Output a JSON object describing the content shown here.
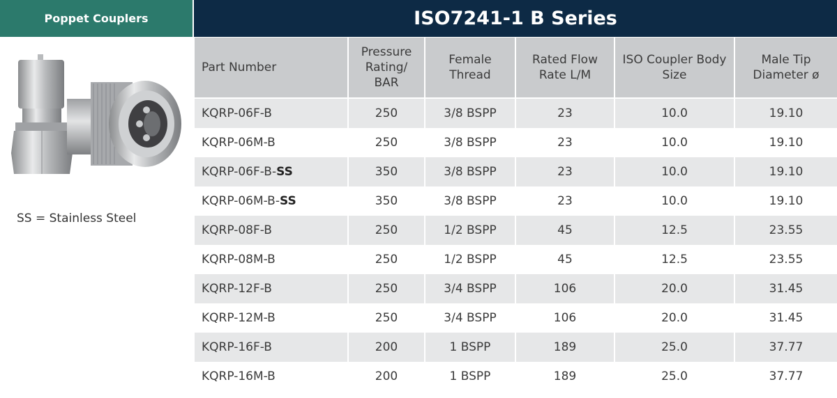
{
  "left": {
    "header": "Poppet Couplers",
    "note": "SS = Stainless Steel"
  },
  "title": "ISO7241-1 B Series",
  "table": {
    "headers": [
      "Part Number",
      "Pressure Rating/ BAR",
      "Female Thread",
      "Rated Flow Rate L/M",
      "ISO Coupler Body Size",
      "Male Tip Diameter ø"
    ],
    "rows": [
      {
        "part": "KQRP-06F-B",
        "suffix": "",
        "pressure": "250",
        "thread": "3/8 BSPP",
        "flow": "23",
        "body": "10.0",
        "tip": "19.10"
      },
      {
        "part": "KQRP-06M-B",
        "suffix": "",
        "pressure": "250",
        "thread": "3/8 BSPP",
        "flow": "23",
        "body": "10.0",
        "tip": "19.10"
      },
      {
        "part": "KQRP-06F-B-",
        "suffix": "SS",
        "pressure": "350",
        "thread": "3/8 BSPP",
        "flow": "23",
        "body": "10.0",
        "tip": "19.10"
      },
      {
        "part": "KQRP-06M-B-",
        "suffix": "SS",
        "pressure": "350",
        "thread": "3/8 BSPP",
        "flow": "23",
        "body": "10.0",
        "tip": "19.10"
      },
      {
        "part": "KQRP-08F-B",
        "suffix": "",
        "pressure": "250",
        "thread": "1/2 BSPP",
        "flow": "45",
        "body": "12.5",
        "tip": "23.55"
      },
      {
        "part": "KQRP-08M-B",
        "suffix": "",
        "pressure": "250",
        "thread": "1/2 BSPP",
        "flow": "45",
        "body": "12.5",
        "tip": "23.55"
      },
      {
        "part": "KQRP-12F-B",
        "suffix": "",
        "pressure": "250",
        "thread": "3/4 BSPP",
        "flow": "106",
        "body": "20.0",
        "tip": "31.45"
      },
      {
        "part": "KQRP-12M-B",
        "suffix": "",
        "pressure": "250",
        "thread": "3/4 BSPP",
        "flow": "106",
        "body": "20.0",
        "tip": "31.45"
      },
      {
        "part": "KQRP-16F-B",
        "suffix": "",
        "pressure": "200",
        "thread": "1 BSPP",
        "flow": "189",
        "body": "25.0",
        "tip": "37.77"
      },
      {
        "part": "KQRP-16M-B",
        "suffix": "",
        "pressure": "200",
        "thread": "1 BSPP",
        "flow": "189",
        "body": "25.0",
        "tip": "37.77"
      }
    ]
  }
}
